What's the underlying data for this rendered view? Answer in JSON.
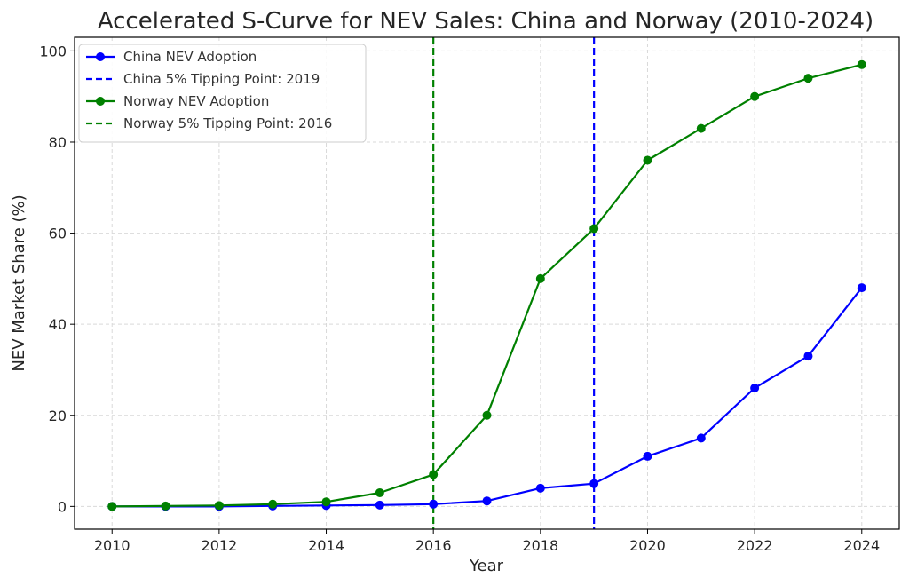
{
  "chart_data": {
    "type": "line",
    "title": "Accelerated S-Curve for NEV Sales: China and Norway (2010-2024)",
    "xlabel": "Year",
    "ylabel": "NEV Market Share (%)",
    "xlim": [
      2009.3,
      2024.7
    ],
    "ylim": [
      -5,
      103
    ],
    "x_ticks": [
      2010,
      2012,
      2014,
      2016,
      2018,
      2020,
      2022,
      2024
    ],
    "y_ticks": [
      0,
      20,
      40,
      60,
      80,
      100
    ],
    "grid": true,
    "legend_position": "top-left",
    "x": [
      2010,
      2011,
      2012,
      2013,
      2014,
      2015,
      2016,
      2017,
      2018,
      2019,
      2020,
      2021,
      2022,
      2023,
      2024
    ],
    "series": [
      {
        "name": "China NEV Adoption",
        "color": "#0000ff",
        "values": [
          0,
          0,
          0,
          0.1,
          0.2,
          0.3,
          0.5,
          1.2,
          4,
          5,
          11,
          15,
          26,
          33,
          48
        ]
      },
      {
        "name": "Norway NEV Adoption",
        "color": "#008000",
        "values": [
          0,
          0.1,
          0.2,
          0.5,
          1,
          3,
          7,
          20,
          50,
          61,
          76,
          83,
          90,
          94,
          97
        ]
      }
    ],
    "vlines": [
      {
        "name": "China 5% Tipping Point: 2019",
        "x": 2019,
        "color": "#0000ff"
      },
      {
        "name": "Norway 5% Tipping Point: 2016",
        "x": 2016,
        "color": "#008000"
      }
    ],
    "legend": [
      {
        "label": "China NEV Adoption",
        "kind": "line-marker",
        "color": "#0000ff"
      },
      {
        "label": "China 5% Tipping Point: 2019",
        "kind": "dashed",
        "color": "#0000ff"
      },
      {
        "label": "Norway NEV Adoption",
        "kind": "line-marker",
        "color": "#008000"
      },
      {
        "label": "Norway 5% Tipping Point: 2016",
        "kind": "dashed",
        "color": "#008000"
      }
    ]
  }
}
